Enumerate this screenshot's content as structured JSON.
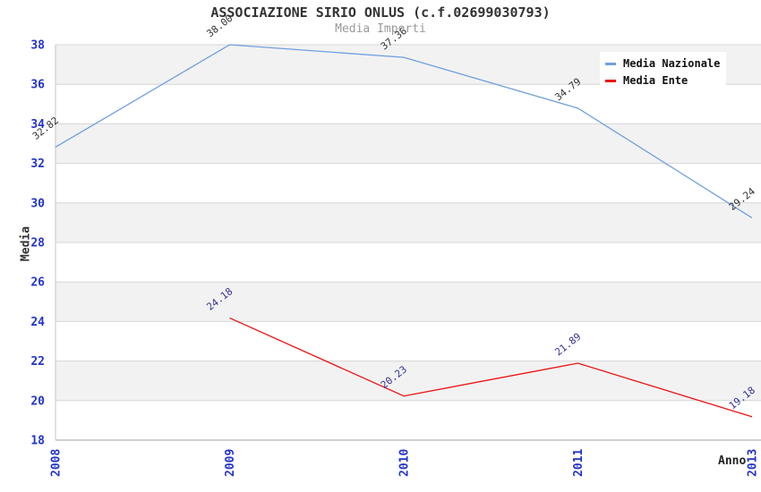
{
  "title": "ASSOCIAZIONE SIRIO ONLUS (c.f.02699030793)",
  "subtitle": "Media Importi",
  "axes": {
    "x_title": "Anno",
    "y_title": "Media",
    "x_ticks": [
      "2008",
      "2009",
      "2010",
      "2011",
      "2013"
    ],
    "y_ticks": [
      38,
      36,
      34,
      32,
      30,
      28,
      26,
      24,
      22,
      20,
      18
    ],
    "tick_color": "#2233cc"
  },
  "legend": {
    "position": "top-right",
    "items": [
      {
        "label": "Media Nazionale"
      },
      {
        "label": "Media Ente"
      }
    ]
  },
  "chart_data": {
    "type": "line",
    "title": "ASSOCIAZIONE SIRIO ONLUS (c.f.02699030793)",
    "subtitle": "Media Importi",
    "xlabel": "Anno",
    "ylabel": "Media",
    "categories": [
      "2008",
      "2009",
      "2010",
      "2011",
      "2013"
    ],
    "series": [
      {
        "name": "Media Nazionale",
        "color": "#6f9fde",
        "label_color": "#333333",
        "values": [
          32.82,
          38.0,
          37.36,
          34.79,
          29.24
        ]
      },
      {
        "name": "Media Ente",
        "color": "#ee1111",
        "label_color": "#333399",
        "values": [
          null,
          24.18,
          20.23,
          21.89,
          19.18
        ]
      }
    ],
    "ylim": [
      18,
      38
    ],
    "y_tick_step": 2,
    "grid": "horizontal",
    "band_colors": [
      "#f2f2f2",
      "#ffffff"
    ],
    "gridline_color": "#d6d6d6",
    "axis_color": "#a0a0a0",
    "legend_position": "top-right"
  }
}
